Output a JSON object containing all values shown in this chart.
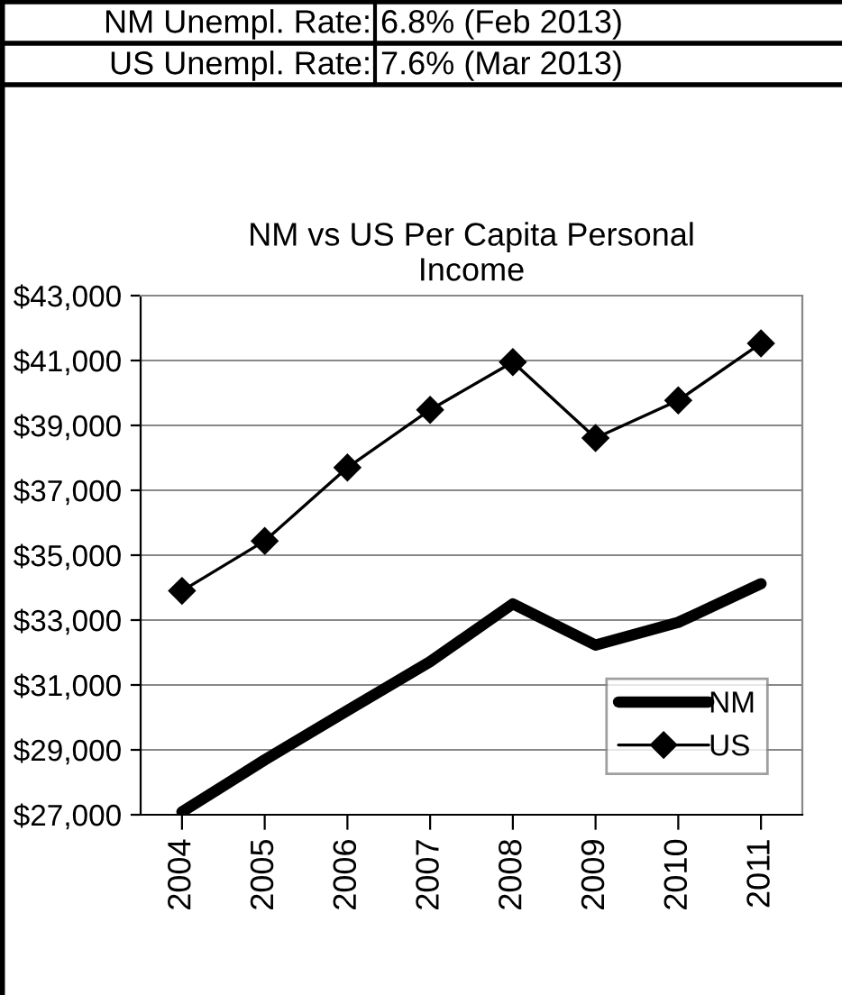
{
  "chart_data": {
    "type": "line",
    "title": "NM vs US Per Capita Personal\nIncome",
    "annotations": [
      "NM Unempl. Rate:",
      "6.8% (Feb 2013)",
      "US Unempl. Rate:",
      "7.6% (Mar 2013)"
    ],
    "categories": [
      "2004",
      "2005",
      "2006",
      "2007",
      "2008",
      "2009",
      "2010",
      "2011"
    ],
    "series": [
      {
        "name": "NM",
        "color": "#000000",
        "marker": "none",
        "values": [
          27090,
          28690,
          30210,
          31720,
          33500,
          32230,
          32930,
          34120
        ]
      },
      {
        "name": "US",
        "color": "#000000",
        "marker": "diamond",
        "values": [
          33900,
          35440,
          37700,
          39480,
          40950,
          38610,
          39770,
          41530
        ]
      }
    ],
    "ylim": [
      27000,
      43000
    ],
    "yticks": [
      {
        "value": 27000,
        "label": "$27,000"
      },
      {
        "value": 29000,
        "label": "$29,000"
      },
      {
        "value": 31000,
        "label": "$31,000"
      },
      {
        "value": 33000,
        "label": "$33,000"
      },
      {
        "value": 35000,
        "label": "$35,000"
      },
      {
        "value": 37000,
        "label": "$37,000"
      },
      {
        "value": 39000,
        "label": "$39,000"
      },
      {
        "value": 41000,
        "label": "$41,000"
      },
      {
        "value": 43000,
        "label": "$43,000"
      }
    ],
    "grid": "y",
    "legend": "bottom right"
  }
}
